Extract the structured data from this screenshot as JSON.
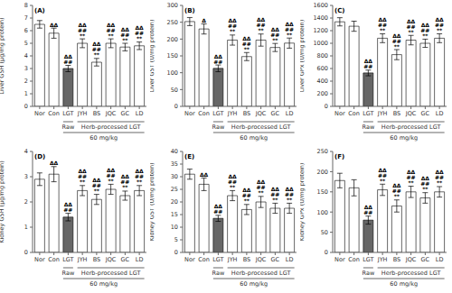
{
  "chart_data": [
    {
      "type": "bar",
      "title": "(A)",
      "ylabel": "Liver GSH (μg/mg protein)",
      "categories": [
        "Nor",
        "Con",
        "LGT",
        "JYH",
        "BS",
        "JQC",
        "GC",
        "LD"
      ],
      "values": [
        6.5,
        5.8,
        3.0,
        5.0,
        3.5,
        5.0,
        4.7,
        4.8
      ],
      "errors": [
        0.3,
        0.4,
        0.25,
        0.35,
        0.3,
        0.35,
        0.3,
        0.3
      ],
      "colors": [
        "#ffffff",
        "#ffffff",
        "#666666",
        "#ffffff",
        "#ffffff",
        "#ffffff",
        "#ffffff",
        "#ffffff"
      ],
      "ylim": [
        0,
        8
      ],
      "yticks": [
        0,
        1,
        2,
        3,
        4,
        5,
        6,
        7,
        8
      ],
      "annotations": [
        null,
        [
          "ΔΔ"
        ],
        [
          "##",
          "ΔΔ"
        ],
        [
          "**",
          "##",
          "ΔΔ"
        ],
        [
          "**",
          "##",
          "ΔΔ"
        ],
        [
          "**",
          "##",
          "ΔΔ"
        ],
        [
          "**",
          "##",
          "ΔΔ"
        ],
        [
          "**",
          "##",
          "ΔΔ"
        ]
      ],
      "category_groups": [
        {
          "label": "Raw",
          "from": "LGT",
          "to": "LGT"
        },
        {
          "label": "Herb-processed LGT",
          "from": "JYH",
          "to": "LD"
        },
        {
          "label": "60 mg/kg",
          "from": "LGT",
          "to": "LD"
        }
      ]
    },
    {
      "type": "bar",
      "title": "(B)",
      "ylabel": "Liver GST (U/mg protein)",
      "categories": [
        "Nor",
        "Con",
        "LGT",
        "JYH",
        "BS",
        "JQC",
        "GC",
        "LD"
      ],
      "values": [
        252,
        230,
        113,
        197,
        148,
        197,
        175,
        188
      ],
      "errors": [
        12,
        15,
        10,
        15,
        12,
        18,
        12,
        15
      ],
      "colors": [
        "#ffffff",
        "#ffffff",
        "#666666",
        "#ffffff",
        "#ffffff",
        "#ffffff",
        "#ffffff",
        "#ffffff"
      ],
      "ylim": [
        0,
        300
      ],
      "yticks": [
        0,
        50,
        100,
        150,
        200,
        250,
        300
      ],
      "annotations": [
        null,
        [
          "Δ"
        ],
        [
          "##",
          "ΔΔ"
        ],
        [
          "**",
          "##",
          "ΔΔ"
        ],
        [
          "**",
          "##",
          "ΔΔ"
        ],
        [
          "**",
          "##",
          "ΔΔ"
        ],
        [
          "**",
          "##",
          "ΔΔ"
        ],
        [
          "**",
          "##",
          "ΔΔ"
        ]
      ],
      "category_groups": [
        {
          "label": "Raw",
          "from": "LGT",
          "to": "LGT"
        },
        {
          "label": "Herb-processed LGT",
          "from": "JYH",
          "to": "LD"
        },
        {
          "label": "60 mg/kg",
          "from": "LGT",
          "to": "LD"
        }
      ]
    },
    {
      "type": "bar",
      "title": "(C)",
      "ylabel": "Liver GPx (U/mg protein)",
      "categories": [
        "Nor",
        "Con",
        "LGT",
        "JYH",
        "BS",
        "JQC",
        "GC",
        "LD"
      ],
      "values": [
        1340,
        1270,
        530,
        1080,
        820,
        1050,
        1000,
        1080
      ],
      "errors": [
        65,
        80,
        45,
        70,
        80,
        75,
        65,
        70
      ],
      "colors": [
        "#ffffff",
        "#ffffff",
        "#666666",
        "#ffffff",
        "#ffffff",
        "#ffffff",
        "#ffffff",
        "#ffffff"
      ],
      "ylim": [
        0,
        1600
      ],
      "yticks": [
        0,
        200,
        400,
        600,
        800,
        1000,
        1200,
        1400,
        1600
      ],
      "annotations": [
        null,
        null,
        [
          "##",
          "ΔΔ"
        ],
        [
          "**",
          "##",
          "ΔΔ"
        ],
        [
          "**",
          "##",
          "ΔΔ"
        ],
        [
          "**",
          "##",
          "ΔΔ"
        ],
        [
          "**",
          "##",
          "ΔΔ"
        ],
        [
          "**",
          "##",
          "ΔΔ"
        ]
      ],
      "category_groups": [
        {
          "label": "Raw",
          "from": "LGT",
          "to": "LGT"
        },
        {
          "label": "Herb-processed LGT",
          "from": "JYH",
          "to": "LD"
        },
        {
          "label": "60 mg/kg",
          "from": "LGT",
          "to": "LD"
        }
      ]
    },
    {
      "type": "bar",
      "title": "(D)",
      "ylabel": "Kidney GSH (μg/mg protein)",
      "categories": [
        "Nor",
        "Con",
        "LGT",
        "JYH",
        "BS",
        "JQC",
        "GC",
        "LD"
      ],
      "values": [
        2.9,
        3.1,
        1.4,
        2.45,
        2.1,
        2.5,
        2.25,
        2.45
      ],
      "errors": [
        0.25,
        0.3,
        0.15,
        0.2,
        0.2,
        0.2,
        0.18,
        0.2
      ],
      "colors": [
        "#ffffff",
        "#ffffff",
        "#666666",
        "#ffffff",
        "#ffffff",
        "#ffffff",
        "#ffffff",
        "#ffffff"
      ],
      "ylim": [
        0,
        4
      ],
      "yticks": [
        0,
        1,
        2,
        3,
        4
      ],
      "annotations": [
        null,
        [
          "ΔΔ"
        ],
        [
          "##",
          "ΔΔ"
        ],
        [
          "**",
          "##",
          "ΔΔ"
        ],
        [
          "**",
          "##",
          "ΔΔ"
        ],
        [
          "**",
          "##",
          "ΔΔ"
        ],
        [
          "**",
          "##",
          "ΔΔ"
        ],
        [
          "**",
          "##",
          "ΔΔ"
        ]
      ],
      "category_groups": [
        {
          "label": "Raw",
          "from": "LGT",
          "to": "LGT"
        },
        {
          "label": "Herb-processed LGT",
          "from": "JYH",
          "to": "LD"
        },
        {
          "label": "60 mg/kg",
          "from": "LGT",
          "to": "LD"
        }
      ]
    },
    {
      "type": "bar",
      "title": "(E)",
      "ylabel": "Kidney GST (U/mg protein)",
      "categories": [
        "Nor",
        "Con",
        "LGT",
        "JYH",
        "BS",
        "JQC",
        "GC",
        "LD"
      ],
      "values": [
        31,
        27,
        13.5,
        22.5,
        17,
        20,
        17.5,
        17.5
      ],
      "errors": [
        2.0,
        2.5,
        1.2,
        2.0,
        2.0,
        2.2,
        2.0,
        2.0
      ],
      "colors": [
        "#ffffff",
        "#ffffff",
        "#666666",
        "#ffffff",
        "#ffffff",
        "#ffffff",
        "#ffffff",
        "#ffffff"
      ],
      "ylim": [
        0,
        40
      ],
      "yticks": [
        0,
        5,
        10,
        15,
        20,
        25,
        30,
        35,
        40
      ],
      "annotations": [
        null,
        [
          "ΔΔ"
        ],
        [
          "##",
          "ΔΔ"
        ],
        [
          "**",
          "##",
          "ΔΔ"
        ],
        [
          "**",
          "##",
          "ΔΔ"
        ],
        [
          "**",
          "##",
          "ΔΔ"
        ],
        [
          "**",
          "##",
          "ΔΔ"
        ],
        [
          "**",
          "##",
          "ΔΔ"
        ]
      ],
      "category_groups": [
        {
          "label": "Raw",
          "from": "LGT",
          "to": "LGT"
        },
        {
          "label": "Herb-processed LGT",
          "from": "JYH",
          "to": "LD"
        },
        {
          "label": "60 mg/kg",
          "from": "LGT",
          "to": "LD"
        }
      ]
    },
    {
      "type": "bar",
      "title": "(F)",
      "ylabel": "Kidney GPx (U/mg protein)",
      "categories": [
        "Nor",
        "Con",
        "LGT",
        "JYH",
        "BS",
        "JQC",
        "GC",
        "LD"
      ],
      "values": [
        178,
        160,
        80,
        155,
        115,
        150,
        135,
        150
      ],
      "errors": [
        18,
        20,
        10,
        14,
        15,
        14,
        13,
        13
      ],
      "colors": [
        "#ffffff",
        "#ffffff",
        "#666666",
        "#ffffff",
        "#ffffff",
        "#ffffff",
        "#ffffff",
        "#ffffff"
      ],
      "ylim": [
        0,
        250
      ],
      "yticks": [
        0,
        50,
        100,
        150,
        200,
        250
      ],
      "annotations": [
        null,
        null,
        [
          "##",
          "ΔΔ"
        ],
        [
          "**",
          "##",
          "ΔΔ"
        ],
        [
          "**",
          "##",
          "ΔΔ"
        ],
        [
          "**",
          "##",
          "ΔΔ"
        ],
        [
          "**",
          "##",
          "ΔΔ"
        ],
        [
          "**",
          "##",
          "ΔΔ"
        ]
      ],
      "category_groups": [
        {
          "label": "Raw",
          "from": "LGT",
          "to": "LGT"
        },
        {
          "label": "Herb-processed LGT",
          "from": "JYH",
          "to": "LD"
        },
        {
          "label": "60 mg/kg",
          "from": "LGT",
          "to": "LD"
        }
      ]
    }
  ]
}
